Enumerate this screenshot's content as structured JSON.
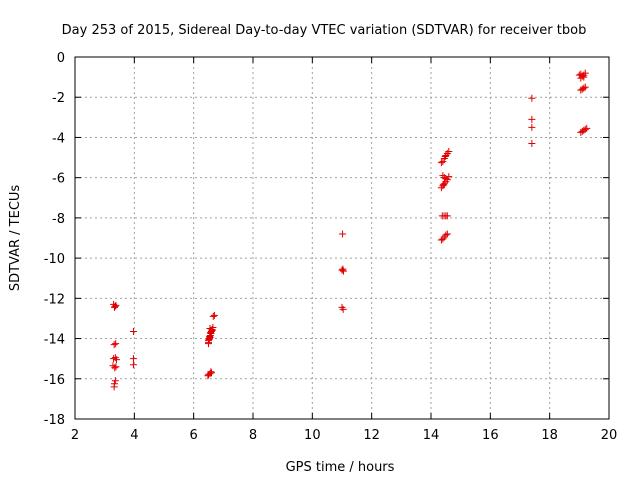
{
  "chart_data": {
    "type": "scatter",
    "title": "Day 253 of 2015, Sidereal Day-to-day VTEC variation (SDTVAR) for receiver tbob",
    "xlabel": "GPS time / hours",
    "ylabel": "SDTVAR / TECUs",
    "xlim": [
      2,
      20
    ],
    "ylim": [
      -18,
      0
    ],
    "xticks": [
      2,
      4,
      6,
      8,
      10,
      12,
      14,
      16,
      18,
      20
    ],
    "yticks": [
      0,
      -2,
      -4,
      -6,
      -8,
      -10,
      -12,
      -14,
      -16,
      -18
    ],
    "grid": true,
    "marker": "+",
    "color": "#e00000",
    "series": [
      {
        "name": "SDTVAR",
        "points": [
          [
            3.3,
            -12.3
          ],
          [
            3.35,
            -12.4
          ],
          [
            3.38,
            -12.35
          ],
          [
            3.33,
            -12.45
          ],
          [
            3.32,
            -14.3
          ],
          [
            3.37,
            -14.25
          ],
          [
            3.3,
            -15.0
          ],
          [
            3.36,
            -14.95
          ],
          [
            3.4,
            -15.05
          ],
          [
            3.28,
            -15.35
          ],
          [
            3.34,
            -15.45
          ],
          [
            3.38,
            -15.4
          ],
          [
            3.36,
            -16.1
          ],
          [
            3.33,
            -16.25
          ],
          [
            3.32,
            -16.4
          ],
          [
            3.97,
            -13.65
          ],
          [
            3.97,
            -15.0
          ],
          [
            3.97,
            -15.3
          ],
          [
            6.5,
            -15.8
          ],
          [
            6.55,
            -15.75
          ],
          [
            6.6,
            -15.7
          ],
          [
            6.48,
            -15.85
          ],
          [
            6.58,
            -15.65
          ],
          [
            6.5,
            -14.2
          ],
          [
            6.52,
            -14.05
          ],
          [
            6.55,
            -13.95
          ],
          [
            6.56,
            -13.85
          ],
          [
            6.58,
            -13.75
          ],
          [
            6.6,
            -13.65
          ],
          [
            6.62,
            -13.55
          ],
          [
            6.5,
            -14.1
          ],
          [
            6.53,
            -14.0
          ],
          [
            6.57,
            -13.7
          ],
          [
            6.55,
            -13.5
          ],
          [
            6.65,
            -13.45
          ],
          [
            6.62,
            -13.6
          ],
          [
            6.5,
            -14.25
          ],
          [
            6.54,
            -13.9
          ],
          [
            6.7,
            -12.85
          ],
          [
            6.66,
            -12.9
          ],
          [
            11.02,
            -8.8
          ],
          [
            11.0,
            -10.6
          ],
          [
            11.05,
            -10.65
          ],
          [
            11.03,
            -10.55
          ],
          [
            11.0,
            -12.45
          ],
          [
            11.04,
            -12.55
          ],
          [
            14.4,
            -5.2
          ],
          [
            14.45,
            -5.05
          ],
          [
            14.5,
            -4.9
          ],
          [
            14.55,
            -4.8
          ],
          [
            14.6,
            -4.7
          ],
          [
            14.35,
            -5.25
          ],
          [
            14.48,
            -4.95
          ],
          [
            14.4,
            -5.9
          ],
          [
            14.45,
            -6.0
          ],
          [
            14.5,
            -6.05
          ],
          [
            14.55,
            -6.1
          ],
          [
            14.6,
            -5.95
          ],
          [
            14.35,
            -6.5
          ],
          [
            14.4,
            -6.4
          ],
          [
            14.45,
            -6.3
          ],
          [
            14.5,
            -6.2
          ],
          [
            14.42,
            -6.35
          ],
          [
            14.38,
            -7.9
          ],
          [
            14.44,
            -7.9
          ],
          [
            14.5,
            -7.9
          ],
          [
            14.55,
            -7.9
          ],
          [
            14.4,
            -9.05
          ],
          [
            14.45,
            -8.95
          ],
          [
            14.5,
            -8.85
          ],
          [
            14.55,
            -8.8
          ],
          [
            14.35,
            -9.1
          ],
          [
            17.4,
            -2.05
          ],
          [
            17.4,
            -3.1
          ],
          [
            17.4,
            -3.5
          ],
          [
            17.4,
            -4.3
          ],
          [
            19.0,
            -0.9
          ],
          [
            19.05,
            -0.85
          ],
          [
            19.1,
            -0.95
          ],
          [
            19.15,
            -0.9
          ],
          [
            19.2,
            -0.8
          ],
          [
            19.05,
            -1.05
          ],
          [
            19.15,
            -1.0
          ],
          [
            19.05,
            -1.65
          ],
          [
            19.1,
            -1.6
          ],
          [
            19.15,
            -1.55
          ],
          [
            19.2,
            -1.5
          ],
          [
            19.05,
            -3.75
          ],
          [
            19.1,
            -3.7
          ],
          [
            19.15,
            -3.65
          ],
          [
            19.2,
            -3.6
          ],
          [
            19.25,
            -3.55
          ]
        ]
      }
    ]
  }
}
